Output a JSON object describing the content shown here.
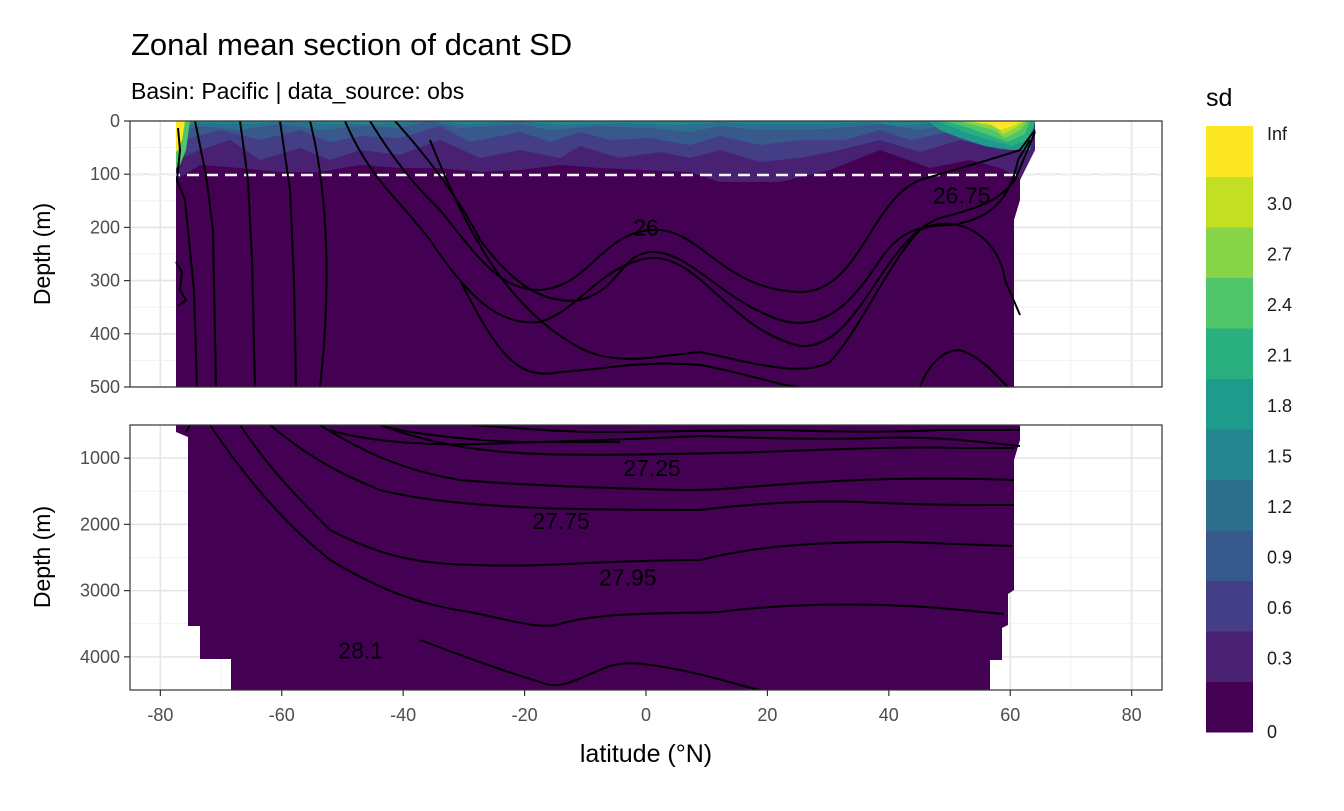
{
  "chart_data": {
    "type": "heatmap",
    "title": "Zonal mean section of dcant SD",
    "subtitle": "Basin: Pacific | data_source: obs",
    "xlabel": "latitude (°N)",
    "xlim": [
      -85,
      85
    ],
    "x_ticks": [
      -80,
      -60,
      -40,
      -20,
      0,
      20,
      40,
      60,
      80
    ],
    "x_tick_labels": [
      "-80",
      "-60",
      "-40",
      "-20",
      "0",
      "20",
      "40",
      "60",
      "80"
    ],
    "reference_line_depth": 100,
    "panels": [
      {
        "ylabel": "Depth (m)",
        "ylim": [
          0,
          500
        ],
        "y_ticks": [
          0,
          100,
          200,
          300,
          400,
          500
        ],
        "y_tick_labels": [
          "0",
          "100",
          "200",
          "300",
          "400",
          "500"
        ],
        "contour_labels": [
          {
            "text": "26",
            "lat": 0,
            "depth": 200
          },
          {
            "text": "26.75",
            "lat": 52,
            "depth": 140
          }
        ]
      },
      {
        "ylabel": "Depth (m)",
        "ylim": [
          500,
          4500
        ],
        "y_ticks": [
          1000,
          2000,
          3000,
          4000
        ],
        "y_tick_labels": [
          "1000",
          "2000",
          "3000",
          "4000"
        ],
        "contour_labels": [
          {
            "text": "27.25",
            "lat": 1,
            "depth": 1150
          },
          {
            "text": "27.75",
            "lat": -14,
            "depth": 1950
          },
          {
            "text": "27.95",
            "lat": -3,
            "depth": 2800
          },
          {
            "text": "28.1",
            "lat": -47,
            "depth": 3900
          }
        ]
      }
    ],
    "legend": {
      "title": "sd",
      "placement": "right",
      "breaks": [
        "0",
        "0.3",
        "0.6",
        "0.9",
        "1.2",
        "1.5",
        "1.8",
        "2.1",
        "2.4",
        "2.7",
        "3.0",
        "Inf"
      ],
      "colors": [
        "#440154",
        "#482173",
        "#433e85",
        "#38598c",
        "#2d708e",
        "#25858e",
        "#1e9b8a",
        "#2ab07f",
        "#51c56a",
        "#86d549",
        "#c2df23",
        "#fde725"
      ]
    }
  }
}
